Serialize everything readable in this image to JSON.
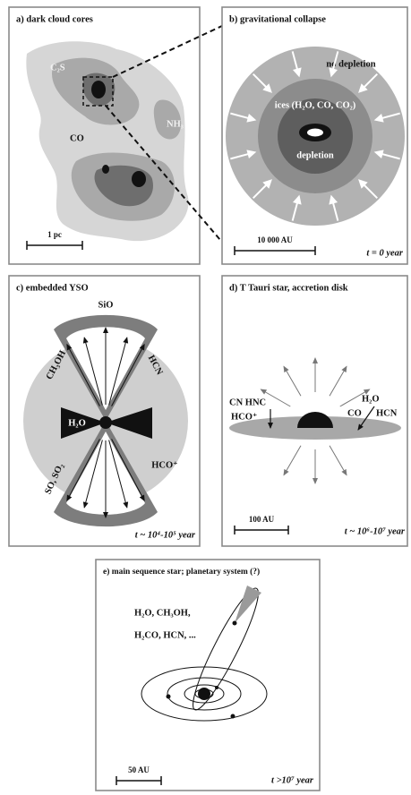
{
  "panels": [
    {
      "title": "a) dark cloud cores",
      "labels": [
        "C₂S",
        "NH₃",
        "CO"
      ],
      "scale": "1 pc"
    },
    {
      "title": "b) gravitational collapse",
      "labels": [
        "no depletion",
        "ices (H₂O, CO, CO₂)",
        "depletion"
      ],
      "scale": "10 000 AU",
      "time": "t = 0  year"
    },
    {
      "title": "c) embedded YSO",
      "labels": [
        "SiO",
        "CH₃OH",
        "HCN",
        "H₂O",
        "SO, SO₂",
        "HCO⁺"
      ],
      "time": "t ~ 10⁴-10⁵ year"
    },
    {
      "title": "d) T Tauri star, accretion disk",
      "labels": [
        "CN HNC",
        "HCO⁺",
        "H₂O",
        "CO",
        "HCN"
      ],
      "scale": "100 AU",
      "time": "t ~ 10⁶-10⁷ year"
    },
    {
      "title": "e) main sequence star; planetary system (?)",
      "labels": [
        "H₂O, CH₃OH,",
        "H₂CO, HCN, ..."
      ],
      "scale": "50 AU",
      "time": "t >10⁷ year"
    }
  ]
}
